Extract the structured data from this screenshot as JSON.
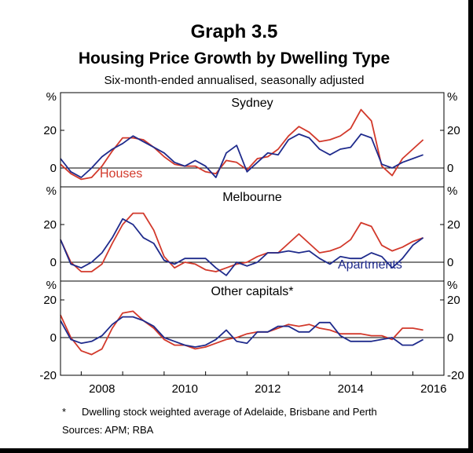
{
  "header": {
    "graph_number": "Graph 3.5",
    "title": "Housing Price Growth by Dwelling Type",
    "subtitle": "Six-month-ended annualised, seasonally adjusted"
  },
  "footer": {
    "note_marker": "*",
    "note": "Dwelling stock weighted average of Adelaide, Brisbane and Perth",
    "sources": "Sources:   APM; RBA"
  },
  "colors": {
    "houses": "#d2392b",
    "apartments": "#1f2b8c",
    "axis": "#000000"
  },
  "chart_data": {
    "type": "line",
    "x_axis": {
      "min": 2007.5,
      "max": 2016.75,
      "ticks": [
        2008,
        2010,
        2012,
        2014,
        2016
      ],
      "tick_labels": [
        "2008",
        "2010",
        "2012",
        "2014",
        "2016"
      ]
    },
    "y_unit": "%",
    "y_ticks": [
      -20,
      0,
      20
    ],
    "panels": [
      {
        "name": "Sydney",
        "ylim": [
          -10,
          40
        ],
        "y_tick_labels": [
          "%",
          "20",
          "0"
        ],
        "label": {
          "text": "Houses",
          "series": "Houses"
        },
        "series": [
          {
            "name": "Houses",
            "color": "#d2392b",
            "x": [
              2007.5,
              2007.75,
              2008.0,
              2008.25,
              2008.5,
              2008.75,
              2009.0,
              2009.25,
              2009.5,
              2009.75,
              2010.0,
              2010.25,
              2010.5,
              2010.75,
              2011.0,
              2011.25,
              2011.5,
              2011.75,
              2012.0,
              2012.25,
              2012.5,
              2012.75,
              2013.0,
              2013.25,
              2013.5,
              2013.75,
              2014.0,
              2014.25,
              2014.5,
              2014.75,
              2015.0,
              2015.25,
              2015.5,
              2015.75,
              2016.0,
              2016.25
            ],
            "y": [
              2,
              -3,
              -6,
              -5,
              1,
              9,
              16,
              16,
              15,
              11,
              6,
              2,
              1,
              1,
              -2,
              -3,
              4,
              3,
              -1,
              5,
              6,
              10,
              17,
              22,
              19,
              14,
              15,
              17,
              21,
              31,
              25,
              1,
              -4,
              5,
              10,
              15
            ]
          },
          {
            "name": "Apartments",
            "color": "#1f2b8c",
            "x": [
              2007.5,
              2007.75,
              2008.0,
              2008.25,
              2008.5,
              2008.75,
              2009.0,
              2009.25,
              2009.5,
              2009.75,
              2010.0,
              2010.25,
              2010.5,
              2010.75,
              2011.0,
              2011.25,
              2011.5,
              2011.75,
              2012.0,
              2012.25,
              2012.5,
              2012.75,
              2013.0,
              2013.25,
              2013.5,
              2013.75,
              2014.0,
              2014.25,
              2014.5,
              2014.75,
              2015.0,
              2015.25,
              2015.5,
              2015.75,
              2016.0,
              2016.25
            ],
            "y": [
              5,
              -2,
              -5,
              0,
              6,
              10,
              13,
              17,
              14,
              11,
              8,
              3,
              1,
              4,
              1,
              -5,
              8,
              12,
              -2,
              3,
              8,
              7,
              15,
              18,
              16,
              10,
              7,
              10,
              11,
              18,
              16,
              2,
              0,
              3,
              5,
              7
            ]
          }
        ]
      },
      {
        "name": "Melbourne",
        "ylim": [
          -10,
          40
        ],
        "y_tick_labels": [
          "%",
          "20",
          "0"
        ],
        "label": {
          "text": "Apartments",
          "series": "Apartments"
        },
        "series": [
          {
            "name": "Houses",
            "color": "#d2392b",
            "x": [
              2007.5,
              2007.75,
              2008.0,
              2008.25,
              2008.5,
              2008.75,
              2009.0,
              2009.25,
              2009.5,
              2009.75,
              2010.0,
              2010.25,
              2010.5,
              2010.75,
              2011.0,
              2011.25,
              2011.5,
              2011.75,
              2012.0,
              2012.25,
              2012.5,
              2012.75,
              2013.0,
              2013.25,
              2013.5,
              2013.75,
              2014.0,
              2014.25,
              2014.5,
              2014.75,
              2015.0,
              2015.25,
              2015.5,
              2015.75,
              2016.0,
              2016.25
            ],
            "y": [
              12,
              0,
              -5,
              -5,
              -1,
              10,
              20,
              26,
              26,
              17,
              3,
              -3,
              0,
              -1,
              -4,
              -5,
              -3,
              -1,
              0,
              3,
              5,
              5,
              10,
              15,
              10,
              5,
              6,
              8,
              12,
              21,
              19,
              9,
              6,
              8,
              11,
              13
            ]
          },
          {
            "name": "Apartments",
            "color": "#1f2b8c",
            "x": [
              2007.5,
              2007.75,
              2008.0,
              2008.25,
              2008.5,
              2008.75,
              2009.0,
              2009.25,
              2009.5,
              2009.75,
              2010.0,
              2010.25,
              2010.5,
              2010.75,
              2011.0,
              2011.25,
              2011.5,
              2011.75,
              2012.0,
              2012.25,
              2012.5,
              2012.75,
              2013.0,
              2013.25,
              2013.5,
              2013.75,
              2014.0,
              2014.25,
              2014.5,
              2014.75,
              2015.0,
              2015.25,
              2015.5,
              2015.75,
              2016.0,
              2016.25
            ],
            "y": [
              12,
              -1,
              -3,
              0,
              5,
              13,
              23,
              20,
              13,
              10,
              1,
              -1,
              2,
              2,
              2,
              -3,
              -7,
              0,
              -2,
              0,
              5,
              5,
              6,
              5,
              6,
              2,
              -1,
              3,
              2,
              2,
              5,
              3,
              -3,
              2,
              9,
              13
            ]
          }
        ]
      },
      {
        "name": "Other capitals*",
        "ylim": [
          -20,
          30
        ],
        "y_tick_labels": [
          "%",
          "20",
          "0",
          "-20"
        ],
        "series": [
          {
            "name": "Houses",
            "color": "#d2392b",
            "x": [
              2007.5,
              2007.75,
              2008.0,
              2008.25,
              2008.5,
              2008.75,
              2009.0,
              2009.25,
              2009.5,
              2009.75,
              2010.0,
              2010.25,
              2010.5,
              2010.75,
              2011.0,
              2011.25,
              2011.5,
              2011.75,
              2012.0,
              2012.25,
              2012.5,
              2012.75,
              2013.0,
              2013.25,
              2013.5,
              2013.75,
              2014.0,
              2014.25,
              2014.5,
              2014.75,
              2015.0,
              2015.25,
              2015.5,
              2015.75,
              2016.0,
              2016.25
            ],
            "y": [
              12,
              0,
              -7,
              -9,
              -6,
              5,
              13,
              14,
              9,
              5,
              -1,
              -4,
              -4,
              -6,
              -5,
              -3,
              -1,
              0,
              2,
              3,
              3,
              5,
              7,
              6,
              7,
              5,
              4,
              2,
              2,
              2,
              1,
              1,
              -1,
              5,
              5,
              4
            ]
          },
          {
            "name": "Apartments",
            "color": "#1f2b8c",
            "x": [
              2007.5,
              2007.75,
              2008.0,
              2008.25,
              2008.5,
              2008.75,
              2009.0,
              2009.25,
              2009.5,
              2009.75,
              2010.0,
              2010.25,
              2010.5,
              2010.75,
              2011.0,
              2011.25,
              2011.5,
              2011.75,
              2012.0,
              2012.25,
              2012.5,
              2012.75,
              2013.0,
              2013.25,
              2013.5,
              2013.75,
              2014.0,
              2014.25,
              2014.5,
              2014.75,
              2015.0,
              2015.25,
              2015.5,
              2015.75,
              2016.0,
              2016.25
            ],
            "y": [
              9,
              -1,
              -3,
              -2,
              1,
              7,
              11,
              11,
              9,
              6,
              0,
              -2,
              -4,
              -5,
              -4,
              -1,
              4,
              -2,
              -3,
              3,
              3,
              6,
              6,
              3,
              3,
              8,
              8,
              1,
              -2,
              -2,
              -2,
              -1,
              0,
              -4,
              -4,
              -1
            ]
          }
        ]
      }
    ]
  }
}
